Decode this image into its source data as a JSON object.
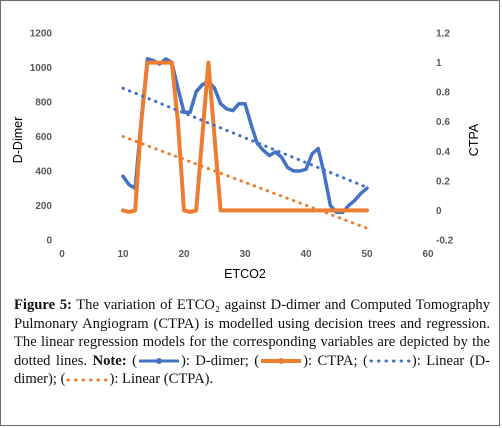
{
  "chart_data": {
    "type": "line",
    "xlabel": "ETCO2",
    "ylabel": "D-Dimer",
    "y2label": "CTPA",
    "xlim": [
      0,
      60
    ],
    "ylim": [
      0,
      1200
    ],
    "y2lim": [
      -0.2,
      1.2
    ],
    "xticks": [
      0,
      10,
      20,
      30,
      40,
      50,
      60
    ],
    "yticks": [
      0,
      200,
      400,
      600,
      800,
      1000,
      1200
    ],
    "y2ticks": [
      "-0.2",
      "0",
      "0.2",
      "0.4",
      "0.6",
      "0.8",
      "1",
      "1.2"
    ],
    "grid": false,
    "series": [
      {
        "name": "D-dimer",
        "axis": "left",
        "color": "#4472C4",
        "style": "solid",
        "x": [
          10,
          11,
          12,
          13,
          14,
          15,
          16,
          17,
          18,
          19,
          20,
          21,
          22,
          23,
          24,
          25,
          26,
          27,
          28,
          29,
          30,
          31,
          32,
          33,
          34,
          35,
          36,
          37,
          38,
          39,
          40,
          41,
          42,
          43,
          44,
          45,
          46,
          47,
          48,
          49,
          50
        ],
        "values": [
          370,
          320,
          300,
          700,
          1050,
          1040,
          1020,
          1050,
          1030,
          880,
          740,
          740,
          860,
          900,
          920,
          880,
          790,
          760,
          750,
          790,
          790,
          670,
          560,
          520,
          490,
          510,
          480,
          420,
          400,
          400,
          410,
          500,
          530,
          380,
          200,
          160,
          160,
          200,
          230,
          270,
          300
        ]
      },
      {
        "name": "CTPA",
        "axis": "right",
        "color": "#ED7D31",
        "style": "solid",
        "x": [
          10,
          11,
          12,
          13,
          14,
          15,
          16,
          17,
          18,
          19,
          20,
          21,
          22,
          23,
          24,
          25,
          26,
          27,
          28,
          30,
          32,
          34,
          36,
          38,
          40,
          42,
          44,
          46,
          48,
          50
        ],
        "values": [
          0,
          -0.01,
          0,
          0.6,
          1,
          1,
          1,
          1,
          1,
          0.6,
          0,
          -0.01,
          0,
          0.5,
          1,
          0.5,
          0,
          0,
          0,
          0,
          0,
          0,
          0,
          0,
          0,
          0,
          0,
          0,
          0,
          0
        ]
      },
      {
        "name": "Linear (D-dimer)",
        "axis": "left",
        "color": "#4472C4",
        "style": "dotted",
        "x": [
          10,
          50
        ],
        "values": [
          880,
          305
        ]
      },
      {
        "name": "Linear (CTPA)",
        "axis": "right",
        "color": "#ED7D31",
        "style": "dotted",
        "x": [
          10,
          50
        ],
        "values": [
          0.5,
          -0.12
        ]
      }
    ]
  },
  "caption": {
    "figure_label": "Figure 5:",
    "text": " The variation of ETCO₂ against D-dimer and Computed Tomography Pulmonary Angiogram (CTPA) is modelled using decision trees and regression. The linear regression models for the corresponding variables are depicted by the dotted lines.",
    "note_label": "Note:",
    "legend_items": [
      {
        "text": ": D-dimer; "
      },
      {
        "text": ": CTPA; "
      },
      {
        "text": ": Linear (D-dimer); "
      },
      {
        "text": ": Linear (CTPA)."
      }
    ]
  }
}
